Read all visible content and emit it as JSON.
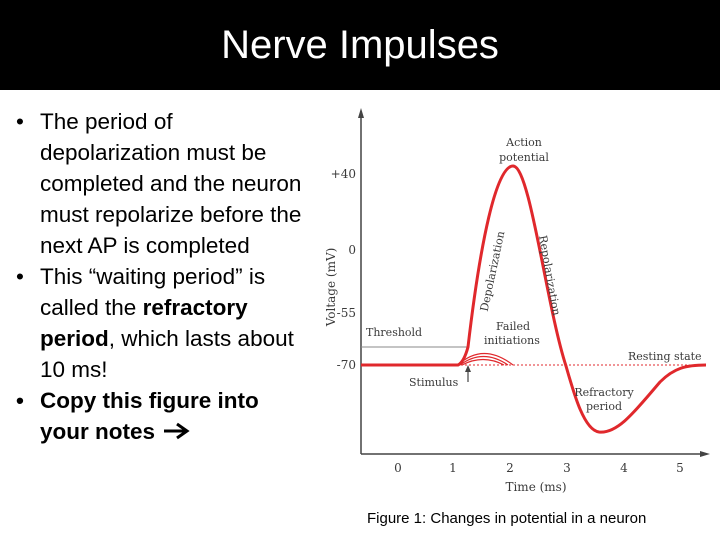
{
  "title": "Nerve Impulses",
  "bullets": [
    {
      "text": "The period of depolarization must be completed and the neuron must repolarize before the next AP is completed"
    },
    {
      "part1": "This “waiting period” is called the ",
      "bold": "refractory period",
      "part2": ", which lasts about 10 ms!"
    },
    {
      "text": "Copy this figure into your notes",
      "icon": "right-arrow-icon"
    }
  ],
  "figure": {
    "ylabel": "Voltage (mV)",
    "xlabel": "Time (ms)",
    "yticks": [
      "+40",
      "0",
      "-55",
      "-70"
    ],
    "xticks": [
      "0",
      "1",
      "2",
      "3",
      "4",
      "5"
    ],
    "labels": {
      "action_potential_1": "Action",
      "action_potential_2": "potential",
      "depolarization": "Depolarization",
      "repolarization": "Repolarization",
      "threshold": "Threshold",
      "failed_1": "Failed",
      "failed_2": "initiations",
      "resting_state": "Resting state",
      "stimulus": "Stimulus",
      "refractory_1": "Refractory",
      "refractory_2": "period"
    },
    "colors": {
      "curve": "#e0282c",
      "threshold_line": "#888888",
      "resting_line": "#e0282c"
    }
  },
  "caption": "Figure 1: Changes in potential in a neuron"
}
